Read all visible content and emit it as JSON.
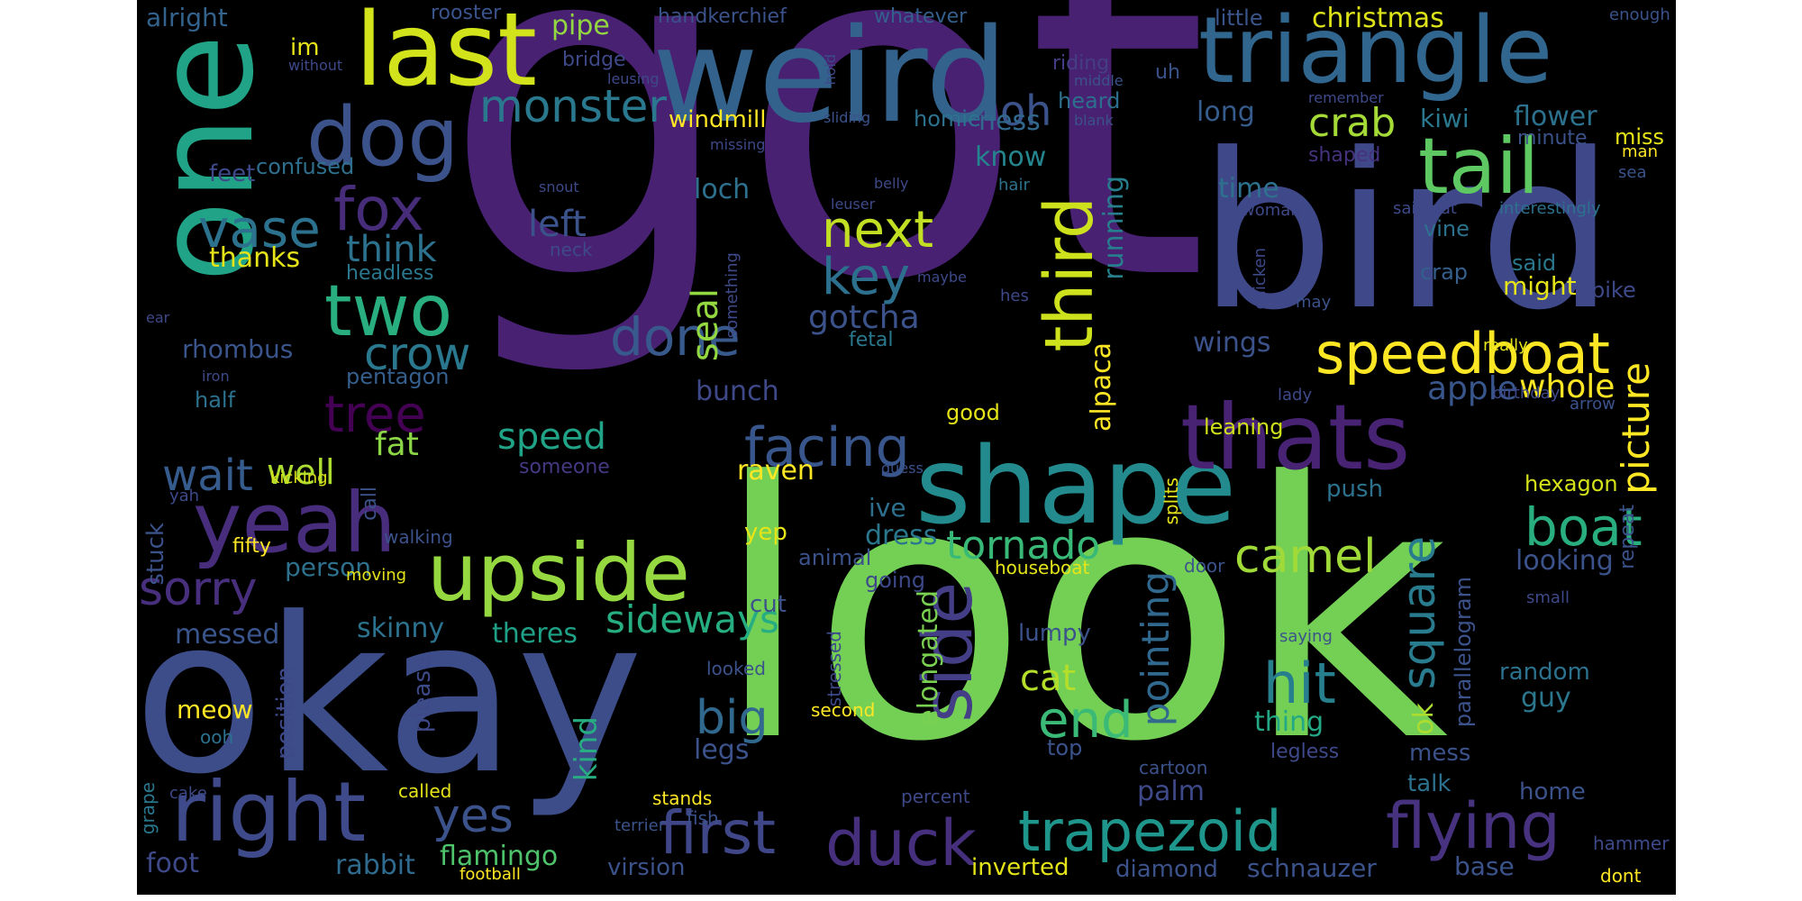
{
  "words": {
    "w_got": {
      "text": "got",
      "color": "#482173"
    },
    "w_look": {
      "text": "look",
      "color": "#73d055"
    },
    "w_okay": {
      "text": "okay",
      "color": "#3d4d8a"
    },
    "w_one": {
      "text": "one",
      "color": "#20a386"
    },
    "w_weird": {
      "text": "weird",
      "color": "#33638d"
    },
    "w_bird": {
      "text": "bird",
      "color": "#3f4889"
    },
    "w_shape": {
      "text": "shape",
      "color": "#238a8d"
    },
    "w_upside": {
      "text": "upside",
      "color": "#95d840"
    },
    "w_triangle": {
      "text": "triangle",
      "color": "#31668e"
    },
    "w_last": {
      "text": "last",
      "color": "#d2e21b"
    },
    "w_thats": {
      "text": "thats",
      "color": "#482374"
    },
    "w_yeah": {
      "text": "yeah",
      "color": "#472d7b"
    },
    "w_right": {
      "text": "right",
      "color": "#3f4a8a"
    },
    "w_side": {
      "text": "side",
      "color": "#433e85"
    },
    "w_dog": {
      "text": "dog",
      "color": "#3b528b"
    },
    "w_tail": {
      "text": "tail",
      "color": "#5ec962"
    },
    "w_two": {
      "text": "two",
      "color": "#29af7f"
    },
    "w_trapezoid": {
      "text": "trapezoid",
      "color": "#1f968b"
    },
    "w_duck": {
      "text": "duck",
      "color": "#462f7c"
    },
    "w_flying": {
      "text": "flying",
      "color": "#46327e"
    },
    "w_first": {
      "text": "first",
      "color": "#3f4788"
    },
    "w_speedboat": {
      "text": "speedboat",
      "color": "#fde725"
    },
    "w_third": {
      "text": "third",
      "color": "#cde11d"
    },
    "w_monster": {
      "text": "monster",
      "color": "#2a788e"
    },
    "w_fox": {
      "text": "fox",
      "color": "#472c7a"
    },
    "w_vase": {
      "text": "vase",
      "color": "#2c728e"
    },
    "w_crow": {
      "text": "crow",
      "color": "#2a788e"
    },
    "w_tree": {
      "text": "tree",
      "color": "#440154"
    },
    "w_done": {
      "text": "done",
      "color": "#38598c"
    },
    "w_key": {
      "text": "key",
      "color": "#2d708e"
    },
    "w_next": {
      "text": "next",
      "color": "#c2df23"
    },
    "w_facing": {
      "text": "facing",
      "color": "#39568c"
    },
    "w_hit": {
      "text": "hit",
      "color": "#277f8e"
    },
    "w_end": {
      "text": "end",
      "color": "#3aba76"
    },
    "w_boat": {
      "text": "boat",
      "color": "#29af7f"
    },
    "w_camel": {
      "text": "camel",
      "color": "#a0da39"
    },
    "w_tornado": {
      "text": "tornado",
      "color": "#38b977"
    },
    "w_square": {
      "text": "square",
      "color": "#297b8e"
    },
    "w_crab": {
      "text": "crab",
      "color": "#a5db36"
    },
    "w_oh": {
      "text": "oh",
      "color": "#3b528b"
    },
    "w_wait": {
      "text": "wait",
      "color": "#365c8d"
    },
    "w_sorry": {
      "text": "sorry",
      "color": "#472f7d"
    },
    "w_yes": {
      "text": "yes",
      "color": "#3b528b"
    },
    "w_big": {
      "text": "big",
      "color": "#31688e"
    },
    "w_seal": {
      "text": "seal",
      "color": "#93d741"
    },
    "w_speed": {
      "text": "speed",
      "color": "#20a386"
    },
    "w_sideways": {
      "text": "sideways",
      "color": "#26ad81"
    },
    "w_picture": {
      "text": "picture",
      "color": "#fde725"
    },
    "w_pointing": {
      "text": "pointing",
      "color": "#31688e"
    },
    "w_cat": {
      "text": "cat",
      "color": "#b5de2b"
    },
    "w_apple": {
      "text": "apple",
      "color": "#39568c"
    },
    "w_whole": {
      "text": "whole",
      "color": "#fde725"
    },
    "w_think": {
      "text": "think",
      "color": "#2c728e"
    },
    "w_left": {
      "text": "left",
      "color": "#3b528b"
    },
    "w_gotcha": {
      "text": "gotcha",
      "color": "#3b528b"
    },
    "w_fat": {
      "text": "fat",
      "color": "#8bd646"
    },
    "w_well": {
      "text": "well",
      "color": "#addc30"
    },
    "w_thanks": {
      "text": "thanks",
      "color": "#e5e419"
    },
    "w_palm": {
      "text": "palm",
      "color": "#3e4989"
    },
    "w_kind": {
      "text": "kind",
      "color": "#27ad81"
    },
    "w_messed": {
      "text": "messed",
      "color": "#3a548c"
    },
    "w_skinny": {
      "text": "skinny",
      "color": "#2c728e"
    },
    "w_theres": {
      "text": "theres",
      "color": "#1fa187"
    },
    "w_rabbit": {
      "text": "rabbit",
      "color": "#2f6b8e"
    },
    "w_flamingo": {
      "text": "flamingo",
      "color": "#4ec36b"
    },
    "w_foot": {
      "text": "foot",
      "color": "#3e4989"
    },
    "w_person": {
      "text": "person",
      "color": "#2d718e"
    },
    "w_dress": {
      "text": "dress",
      "color": "#2a778e"
    },
    "w_raven": {
      "text": "raven",
      "color": "#fde725"
    },
    "w_ive": {
      "text": "ive",
      "color": "#2d708e"
    },
    "w_elongated": {
      "text": "elongated",
      "color": "#7ad151"
    },
    "w_legs": {
      "text": "legs",
      "color": "#3b528b"
    },
    "w_thing": {
      "text": "thing",
      "color": "#22a884"
    },
    "w_ok": {
      "text": "ok",
      "color": "#addc30"
    },
    "w_random": {
      "text": "random",
      "color": "#2c728e"
    },
    "w_guy": {
      "text": "guy",
      "color": "#2a778e"
    },
    "w_looking": {
      "text": "looking",
      "color": "#3b528b"
    },
    "w_hexagon": {
      "text": "hexagon",
      "color": "#d5e21a"
    },
    "w_push": {
      "text": "push",
      "color": "#2c728e"
    },
    "w_leaning": {
      "text": "leaning",
      "color": "#d0e11c"
    },
    "w_wings": {
      "text": "wings",
      "color": "#3b528b"
    },
    "w_time": {
      "text": "time",
      "color": "#2d718e"
    },
    "w_know": {
      "text": "know",
      "color": "#25858e"
    },
    "w_alpaca": {
      "text": "alpaca",
      "color": "#fde725"
    },
    "w_running": {
      "text": "running",
      "color": "#277f8e"
    },
    "w_loch": {
      "text": "loch",
      "color": "#2d718e"
    },
    "w_bunch": {
      "text": "bunch",
      "color": "#3e4989"
    },
    "w_rhombus": {
      "text": "rhombus",
      "color": "#3a548c"
    },
    "w_pentagon": {
      "text": "pentagon",
      "color": "#355f8d"
    },
    "w_half": {
      "text": "half",
      "color": "#2c728e"
    },
    "w_headless": {
      "text": "headless",
      "color": "#2a788e"
    },
    "w_confused": {
      "text": "confused",
      "color": "#2e6f8e"
    },
    "w_feet": {
      "text": "feet",
      "color": "#3e4989"
    },
    "w_im": {
      "text": "im",
      "color": "#e7e419"
    },
    "w_alright": {
      "text": "alright",
      "color": "#33638d"
    },
    "w_rooster": {
      "text": "rooster",
      "color": "#3a548c"
    },
    "w_pipe": {
      "text": "pipe",
      "color": "#93d741"
    },
    "w_bridge": {
      "text": "bridge",
      "color": "#3e4989"
    },
    "w_handkerchief": {
      "text": "handkerchief",
      "color": "#3b528b"
    },
    "w_whatever": {
      "text": "whatever",
      "color": "#355f8d"
    },
    "w_little": {
      "text": "little",
      "color": "#3a548c"
    },
    "w_christmas": {
      "text": "christmas",
      "color": "#dde318"
    },
    "w_windmill": {
      "text": "windmill",
      "color": "#fde725"
    },
    "w_homie": {
      "text": "homie",
      "color": "#2c728e"
    },
    "w_ness": {
      "text": "ness",
      "color": "#31688e"
    },
    "w_heard": {
      "text": "heard",
      "color": "#2d708e"
    },
    "w_riding": {
      "text": "riding",
      "color": "#433e85"
    },
    "w_uh": {
      "text": "uh",
      "color": "#3b528b"
    },
    "w_long": {
      "text": "long",
      "color": "#365c8d"
    },
    "w_kiwi": {
      "text": "kiwi",
      "color": "#2a788e"
    },
    "w_flower": {
      "text": "flower",
      "color": "#2c728e"
    },
    "w_miss": {
      "text": "miss",
      "color": "#e5e419"
    },
    "w_minute": {
      "text": "minute",
      "color": "#3b528b"
    },
    "w_shaped": {
      "text": "shaped",
      "color": "#46327e"
    },
    "w_vine": {
      "text": "vine",
      "color": "#2c728e"
    },
    "w_said": {
      "text": "said",
      "color": "#2a788e"
    },
    "w_crap": {
      "text": "crap",
      "color": "#355f8d"
    },
    "w_might": {
      "text": "might",
      "color": "#e5e419"
    },
    "w_bike": {
      "text": "bike",
      "color": "#3e4989"
    },
    "w_good": {
      "text": "good",
      "color": "#e5e419"
    },
    "w_someone": {
      "text": "someone",
      "color": "#443983"
    },
    "w_call": {
      "text": "call",
      "color": "#3b528b"
    },
    "w_walking": {
      "text": "walking",
      "color": "#3b528b"
    },
    "w_fifty": {
      "text": "fifty",
      "color": "#fde725"
    },
    "w_moving": {
      "text": "moving",
      "color": "#e5e419"
    },
    "w_stuck": {
      "text": "stuck",
      "color": "#3b528b"
    },
    "w_yah": {
      "text": "yah",
      "color": "#3e4989"
    },
    "w_kicking": {
      "text": "kicking",
      "color": "#d8e219"
    },
    "w_meow": {
      "text": "meow",
      "color": "#fde725"
    },
    "w_ooh": {
      "text": "ooh",
      "color": "#2c728e"
    },
    "w_position": {
      "text": "position",
      "color": "#3e4989"
    },
    "w_please": {
      "text": "please",
      "color": "#3e4989"
    },
    "w_grape": {
      "text": "grape",
      "color": "#2a788e"
    },
    "w_cake": {
      "text": "cake",
      "color": "#3e4989"
    },
    "w_called": {
      "text": "called",
      "color": "#e5e419"
    },
    "w_stands": {
      "text": "stands",
      "color": "#fde725"
    },
    "w_terrier": {
      "text": "terrier",
      "color": "#3b528b"
    },
    "w_fish": {
      "text": "fish",
      "color": "#3b528b"
    },
    "w_virsion": {
      "text": "virsion",
      "color": "#3b528b"
    },
    "w_football": {
      "text": "football",
      "color": "#fde725"
    },
    "w_inverted": {
      "text": "inverted",
      "color": "#e5e419"
    },
    "w_diamond": {
      "text": "diamond",
      "color": "#3b528b"
    },
    "w_schnauzer": {
      "text": "schnauzer",
      "color": "#3b528b"
    },
    "w_base": {
      "text": "base",
      "color": "#3b528b"
    },
    "w_dont": {
      "text": "dont",
      "color": "#fde725"
    },
    "w_hammer": {
      "text": "hammer",
      "color": "#3e4989"
    },
    "w_home": {
      "text": "home",
      "color": "#3b528b"
    },
    "w_talk": {
      "text": "talk",
      "color": "#2c728e"
    },
    "w_mess": {
      "text": "mess",
      "color": "#3b528b"
    },
    "w_legless": {
      "text": "legless",
      "color": "#3e4989"
    },
    "w_cartoon": {
      "text": "cartoon",
      "color": "#3b528b"
    },
    "w_percent": {
      "text": "percent",
      "color": "#3e4989"
    },
    "w_top": {
      "text": "top",
      "color": "#3b528b"
    },
    "w_lumpy": {
      "text": "lumpy",
      "color": "#3b528b"
    },
    "w_second": {
      "text": "second",
      "color": "#fde725"
    },
    "w_looked": {
      "text": "looked",
      "color": "#3b528b"
    },
    "w_stressed": {
      "text": "stressed",
      "color": "#3e4989"
    },
    "w_animal": {
      "text": "animal",
      "color": "#3b528b"
    },
    "w_going": {
      "text": "going",
      "color": "#3e4989"
    },
    "w_cut": {
      "text": "cut",
      "color": "#3b528b"
    },
    "w_yep": {
      "text": "yep",
      "color": "#e5e419"
    },
    "w_houseboat": {
      "text": "houseboat",
      "color": "#e5e419"
    },
    "w_door": {
      "text": "door",
      "color": "#3b528b"
    },
    "w_splits": {
      "text": "splits",
      "color": "#e5e419"
    },
    "w_saying": {
      "text": "saying",
      "color": "#3b528b"
    },
    "w_small": {
      "text": "small",
      "color": "#3e4989"
    },
    "w_repeat": {
      "text": "repeat",
      "color": "#3b528b"
    },
    "w_parallelogram": {
      "text": "parallelogram",
      "color": "#3b528b"
    },
    "w_birthday": {
      "text": "birthday",
      "color": "#3e4989"
    },
    "w_arrow": {
      "text": "arrow",
      "color": "#3b528b"
    },
    "w_lady": {
      "text": "lady",
      "color": "#3e4989"
    },
    "w_really": {
      "text": "really",
      "color": "#e5e419"
    },
    "w_may": {
      "text": "may",
      "color": "#3b528b"
    },
    "w_chicken": {
      "text": "chicken",
      "color": "#3e4989"
    },
    "w_woman": {
      "text": "woman",
      "color": "#3e4989"
    },
    "w_sailboat": {
      "text": "sailboat",
      "color": "#3e4989"
    },
    "w_interestingly": {
      "text": "interestingly",
      "color": "#2c728e"
    },
    "w_sea": {
      "text": "sea",
      "color": "#3b528b"
    },
    "w_man": {
      "text": "man",
      "color": "#fde725"
    },
    "w_enough": {
      "text": "enough",
      "color": "#3b528b"
    },
    "w_remember": {
      "text": "remember",
      "color": "#3e4989"
    },
    "w_blank": {
      "text": "blank",
      "color": "#3b528b"
    },
    "w_middle": {
      "text": "middle",
      "color": "#3b528b"
    },
    "w_hold": {
      "text": "hold",
      "color": "#3e4989"
    },
    "w_sliding": {
      "text": "sliding",
      "color": "#3b528b"
    },
    "w_missing": {
      "text": "missing",
      "color": "#3e4989"
    },
    "w_leusing": {
      "text": "leusing",
      "color": "#3e4989"
    },
    "w_without": {
      "text": "without",
      "color": "#3e4989"
    },
    "w_snout": {
      "text": "snout",
      "color": "#3e4989"
    },
    "w_belly": {
      "text": "belly",
      "color": "#3e4989"
    },
    "w_leuser": {
      "text": "leuser",
      "color": "#3e4989"
    },
    "w_neck": {
      "text": "neck",
      "color": "#3e4989"
    },
    "w_hair": {
      "text": "hair",
      "color": "#2c728e"
    },
    "w_hes": {
      "text": "hes",
      "color": "#3e4989"
    },
    "w_maybe": {
      "text": "maybe",
      "color": "#3e4989"
    },
    "w_something": {
      "text": "something",
      "color": "#3e4989"
    },
    "w_fetal": {
      "text": "fetal",
      "color": "#2a788e"
    },
    "w_iron": {
      "text": "iron",
      "color": "#3e4989"
    },
    "w_ear": {
      "text": "ear",
      "color": "#3e4989"
    },
    "w_guess": {
      "text": "guess",
      "color": "#3b528b"
    }
  }
}
